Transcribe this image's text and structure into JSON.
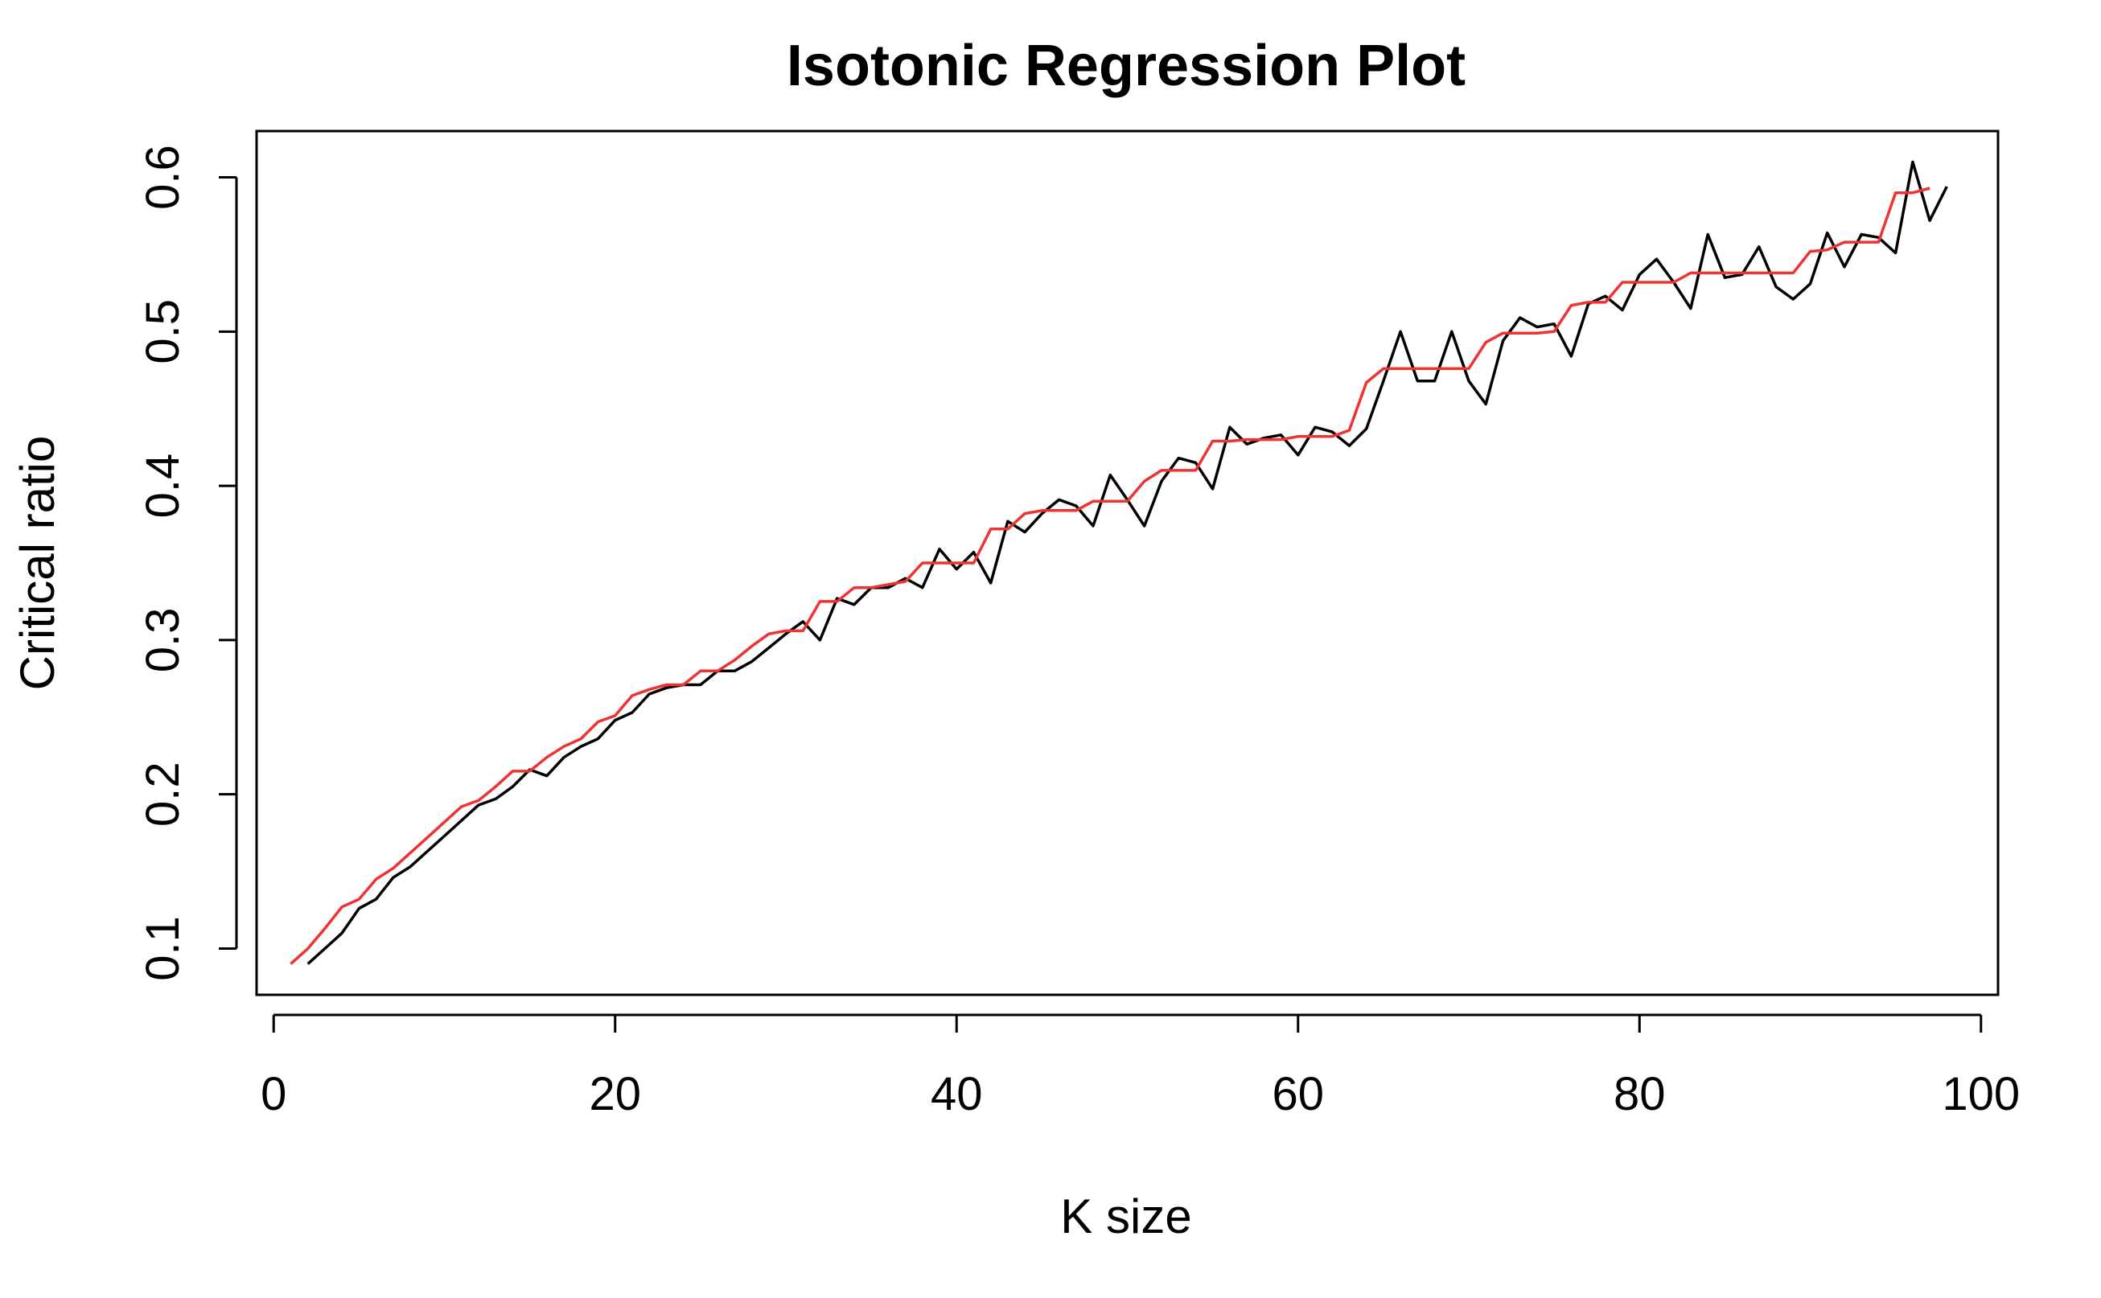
{
  "chart_data": {
    "type": "line",
    "title": "Isotonic Regression Plot",
    "xlabel": "K size",
    "ylabel": "Critical ratio",
    "xlim": [
      -1,
      101
    ],
    "ylim": [
      0.07,
      0.63
    ],
    "x_ticks": [
      0,
      20,
      40,
      60,
      80,
      100
    ],
    "y_ticks": [
      0.1,
      0.2,
      0.3,
      0.4,
      0.5,
      0.6
    ],
    "x_tick_labels": [
      "0",
      "20",
      "40",
      "60",
      "80",
      "100"
    ],
    "y_tick_labels": [
      "0.1",
      "0.2",
      "0.3",
      "0.4",
      "0.5",
      "0.6"
    ],
    "grid": false,
    "series": [
      {
        "color": "#000000",
        "x": [
          2,
          3,
          4,
          5,
          6,
          7,
          8,
          9,
          10,
          11,
          12,
          13,
          14,
          15,
          16,
          17,
          18,
          19,
          20,
          21,
          22,
          23,
          24,
          25,
          26,
          27,
          28,
          29,
          30,
          31,
          32,
          33,
          34,
          35,
          36,
          37,
          38,
          39,
          40,
          41,
          42,
          43,
          44,
          45,
          46,
          47,
          48,
          49,
          50,
          51,
          52,
          53,
          54,
          55,
          56,
          57,
          58,
          59,
          60,
          61,
          62,
          63,
          64,
          65,
          66,
          67,
          68,
          69,
          70,
          71,
          72,
          73,
          74,
          75,
          76,
          77,
          78,
          79,
          80,
          81,
          82,
          83,
          84,
          85,
          86,
          87,
          88,
          89,
          90,
          91,
          92,
          93,
          94,
          95,
          96,
          97,
          98
        ],
        "y": [
          0.09,
          0.1,
          0.11,
          0.126,
          0.132,
          0.146,
          0.153,
          0.163,
          0.173,
          0.183,
          0.193,
          0.197,
          0.205,
          0.216,
          0.212,
          0.224,
          0.231,
          0.236,
          0.248,
          0.253,
          0.265,
          0.269,
          0.271,
          0.271,
          0.28,
          0.28,
          0.286,
          0.295,
          0.304,
          0.312,
          0.3,
          0.327,
          0.323,
          0.334,
          0.334,
          0.34,
          0.334,
          0.359,
          0.346,
          0.357,
          0.337,
          0.377,
          0.37,
          0.382,
          0.391,
          0.387,
          0.374,
          0.407,
          0.391,
          0.374,
          0.403,
          0.418,
          0.415,
          0.398,
          0.438,
          0.427,
          0.431,
          0.433,
          0.42,
          0.438,
          0.435,
          0.426,
          0.437,
          0.468,
          0.5,
          0.468,
          0.468,
          0.5,
          0.468,
          0.453,
          0.494,
          0.509,
          0.503,
          0.505,
          0.484,
          0.518,
          0.523,
          0.514,
          0.537,
          0.547,
          0.532,
          0.515,
          0.563,
          0.535,
          0.537,
          0.555,
          0.529,
          0.521,
          0.531,
          0.564,
          0.542,
          0.563,
          0.561,
          0.551,
          0.61,
          0.572,
          0.594
        ]
      },
      {
        "color": "#ee3333",
        "x": [
          1,
          2,
          3,
          4,
          5,
          6,
          7,
          8,
          9,
          10,
          11,
          12,
          13,
          14,
          15,
          16,
          17,
          18,
          19,
          20,
          21,
          22,
          23,
          24,
          25,
          26,
          27,
          28,
          29,
          30,
          31,
          32,
          33,
          34,
          35,
          36,
          37,
          38,
          39,
          40,
          41,
          42,
          43,
          44,
          45,
          46,
          47,
          48,
          49,
          50,
          51,
          52,
          53,
          54,
          55,
          56,
          57,
          58,
          59,
          60,
          61,
          62,
          63,
          64,
          65,
          66,
          67,
          68,
          69,
          70,
          71,
          72,
          73,
          74,
          75,
          76,
          77,
          78,
          79,
          80,
          81,
          82,
          83,
          84,
          85,
          86,
          87,
          88,
          89,
          90,
          91,
          92,
          93,
          94,
          95,
          96,
          97
        ],
        "y": [
          0.09,
          0.1,
          0.113,
          0.127,
          0.132,
          0.145,
          0.152,
          0.162,
          0.172,
          0.182,
          0.192,
          0.196,
          0.205,
          0.215,
          0.215,
          0.224,
          0.231,
          0.236,
          0.247,
          0.251,
          0.264,
          0.268,
          0.271,
          0.271,
          0.28,
          0.28,
          0.287,
          0.296,
          0.304,
          0.306,
          0.306,
          0.325,
          0.325,
          0.334,
          0.334,
          0.336,
          0.338,
          0.35,
          0.35,
          0.35,
          0.35,
          0.372,
          0.372,
          0.382,
          0.384,
          0.384,
          0.384,
          0.39,
          0.39,
          0.39,
          0.403,
          0.41,
          0.41,
          0.41,
          0.429,
          0.429,
          0.43,
          0.43,
          0.43,
          0.432,
          0.432,
          0.432,
          0.436,
          0.467,
          0.476,
          0.476,
          0.476,
          0.476,
          0.476,
          0.476,
          0.493,
          0.499,
          0.499,
          0.499,
          0.5,
          0.517,
          0.519,
          0.519,
          0.532,
          0.532,
          0.532,
          0.532,
          0.538,
          0.538,
          0.538,
          0.538,
          0.538,
          0.538,
          0.538,
          0.552,
          0.553,
          0.558,
          0.558,
          0.558,
          0.59,
          0.59,
          0.593
        ]
      }
    ]
  }
}
